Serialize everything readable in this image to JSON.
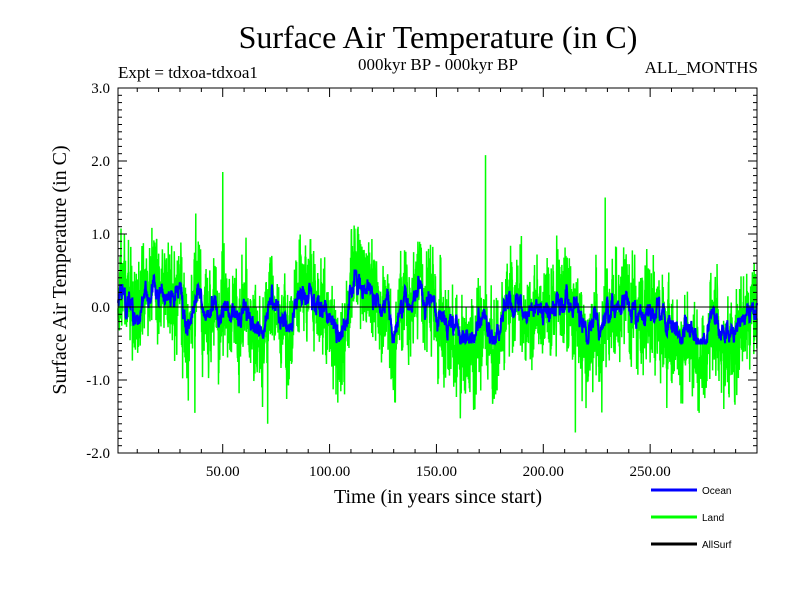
{
  "chart_data": {
    "type": "line",
    "title": "Surface Air Temperature (in C)",
    "subtitle_left": "Expt = tdxoa-tdxoa1",
    "subtitle_center": "000kyr BP - 000kyr BP",
    "subtitle_right": "ALL_MONTHS",
    "xlabel": "Time (in years since start)",
    "ylabel": "Surface Air Temperature (in C)",
    "xlim": [
      1,
      300
    ],
    "ylim": [
      -2.0,
      3.0
    ],
    "x_ticks": [
      50,
      100,
      150,
      200,
      250
    ],
    "x_tick_labels": [
      "50.00",
      "100.00",
      "150.00",
      "200.00",
      "250.00"
    ],
    "y_ticks": [
      -2.0,
      -1.0,
      0.0,
      1.0,
      2.0,
      3.0
    ],
    "y_tick_labels": [
      "-2.0",
      "-1.0",
      "0.0",
      "1.0",
      "2.0",
      "3.0"
    ],
    "zero_line": true,
    "legend_position": "bottom-right",
    "series": [
      {
        "name": "Ocean",
        "color": "#0000ff",
        "amplitude": 0.18
      },
      {
        "name": "Land",
        "color": "#00ff00",
        "amplitude": 0.55,
        "peaks": [
          [
            50,
            1.85
          ],
          [
            173,
            2.08
          ],
          [
            229,
            1.5
          ],
          [
            215,
            -1.72
          ],
          [
            71,
            -1.6
          ],
          [
            168,
            -1.4
          ],
          [
            37,
            -1.45
          ]
        ]
      },
      {
        "name": "AllSurf",
        "color": "#000000"
      }
    ]
  }
}
